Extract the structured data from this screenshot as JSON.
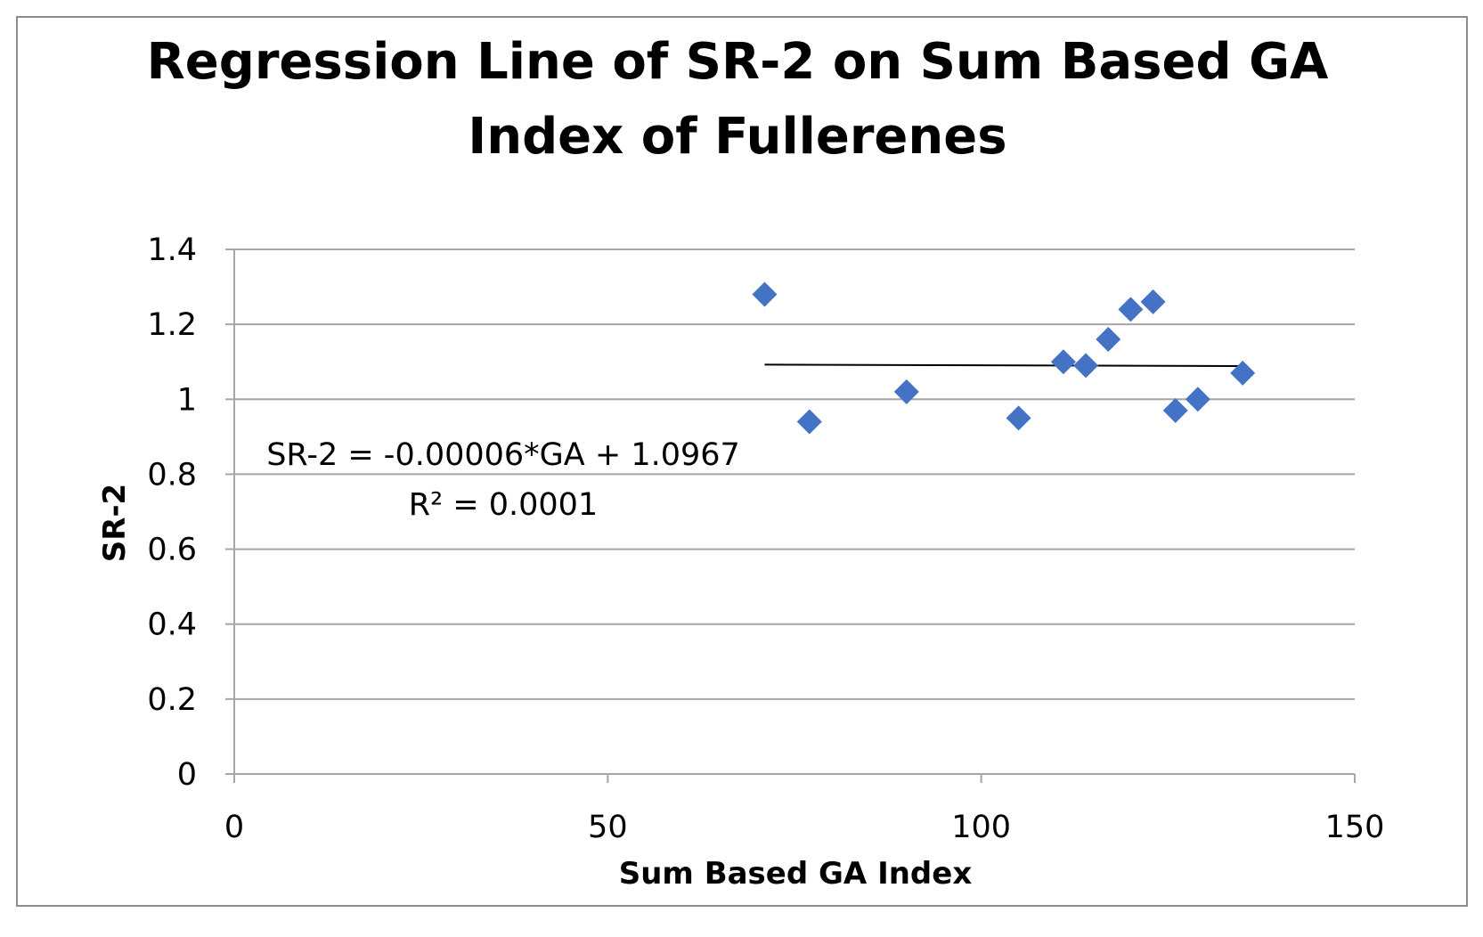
{
  "chart_data": {
    "type": "scatter",
    "title": [
      "Regression Line of SR-2 on Sum Based GA",
      "Index of Fullerenes"
    ],
    "xlabel": "Sum Based GA Index",
    "ylabel": "SR-2",
    "xlim": [
      0,
      150
    ],
    "ylim": [
      0,
      1.4
    ],
    "x_ticks": [
      "0",
      "50",
      "100",
      "150"
    ],
    "y_ticks": [
      "0",
      "0.2",
      "0.4",
      "0.6",
      "0.8",
      "1",
      "1.2",
      "1.4"
    ],
    "grid": "horizontal",
    "marker": "diamond",
    "series": [
      {
        "name": "SR-2",
        "color": "#4472C4",
        "points": [
          {
            "x": 71.0,
            "y": 1.28
          },
          {
            "x": 77.0,
            "y": 0.94
          },
          {
            "x": 90.0,
            "y": 1.02
          },
          {
            "x": 105.0,
            "y": 0.95
          },
          {
            "x": 111.0,
            "y": 1.1
          },
          {
            "x": 114.0,
            "y": 1.09
          },
          {
            "x": 117.0,
            "y": 1.16
          },
          {
            "x": 120.0,
            "y": 1.24
          },
          {
            "x": 123.0,
            "y": 1.26
          },
          {
            "x": 126.0,
            "y": 0.97
          },
          {
            "x": 129.0,
            "y": 1.0
          },
          {
            "x": 135.0,
            "y": 1.07
          }
        ]
      }
    ],
    "trendline": {
      "slope": -6e-05,
      "intercept": 1.0967,
      "x_range": [
        71.0,
        135.0
      ],
      "color": "#000000",
      "equation": "SR-2 = -0.00006*GA + 1.0967",
      "r_squared": "R² = 0.0001"
    }
  }
}
